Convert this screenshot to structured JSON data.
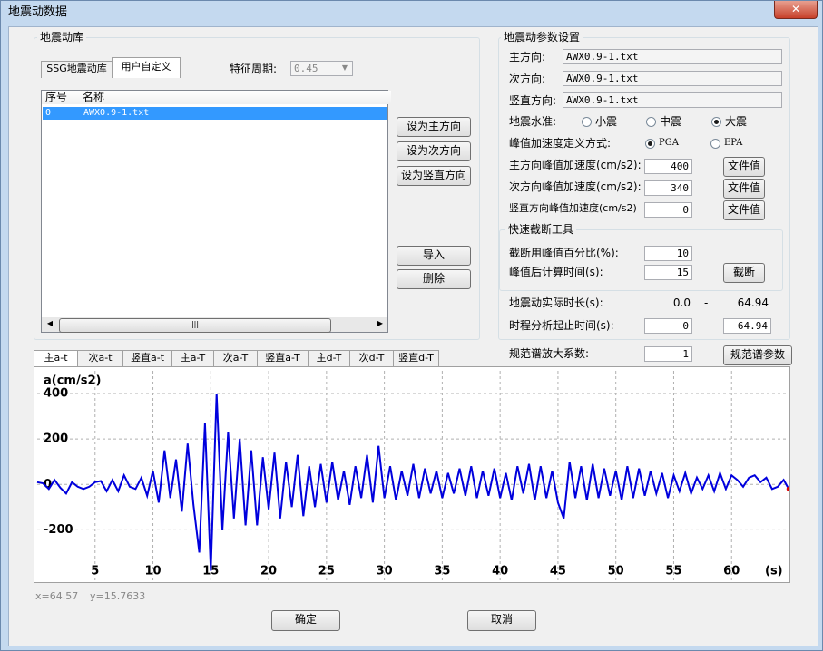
{
  "window": {
    "title": "地震动数据"
  },
  "library": {
    "title": "地震动库",
    "tabs": [
      "SSG地震动库",
      "用户自定义"
    ],
    "period_label": "特征周期:",
    "period": "0.45",
    "columns": [
      "序号",
      "名称"
    ],
    "rows": [
      [
        "0",
        "AWXO.9-1.txt"
      ]
    ],
    "buttons": [
      "设为主方向",
      "设为次方向",
      "设为竖直方向",
      "导入",
      "删除"
    ]
  },
  "params": {
    "title": "地震动参数设置",
    "files": [
      {
        "label": "主方向:",
        "value": "AWX0.9-1.txt"
      },
      {
        "label": "次方向:",
        "value": "AWX0.9-1.txt"
      },
      {
        "label": "竖直方向:",
        "value": "AWX0.9-1.txt"
      }
    ],
    "level": {
      "label": "地震水准:",
      "options": [
        "小震",
        "中震",
        "大震"
      ],
      "selected": "大震"
    },
    "peak_def": {
      "label": "峰值加速度定义方式:",
      "options": [
        "PGA",
        "EPA"
      ],
      "selected": "PGA"
    },
    "peaks": [
      {
        "label": "主方向峰值加速度(cm/s2):",
        "value": "400",
        "button": "文件值"
      },
      {
        "label": "次方向峰值加速度(cm/s2):",
        "value": "340",
        "button": "文件值"
      },
      {
        "label": "竖直方向峰值加速度(cm/s2)",
        "value": "0",
        "button": "文件值"
      }
    ],
    "truncate": {
      "title": "快速截断工具",
      "rows": [
        {
          "label": "截断用峰值百分比(%):",
          "value": "10"
        },
        {
          "label": "峰值后计算时间(s):",
          "value": "15"
        }
      ],
      "button": "截断"
    },
    "duration": {
      "label": "地震动实际时长(s):",
      "start": "0.0",
      "sep": "-",
      "end": "64.94"
    },
    "range": {
      "label": "时程分析起止时间(s):",
      "start": "0",
      "sep": "-",
      "end": "64.94"
    },
    "scale": {
      "label": "规范谱放大系数:",
      "value": "1",
      "button": "规范谱参数"
    }
  },
  "chart_tabs": [
    "主a-t",
    "次a-t",
    "竖直a-t",
    "主a-T",
    "次a-T",
    "竖直a-T",
    "主d-T",
    "次d-T",
    "竖直d-T"
  ],
  "status": [
    "x=64.57",
    "y=15.7633"
  ],
  "footer": [
    "确定",
    "取消"
  ],
  "chart_data": {
    "type": "line",
    "ylabel": "a(cm/s2)",
    "xlabel": "(s)",
    "color": "#0000dd",
    "grid": true,
    "xlim": [
      0,
      65
    ],
    "ylim": [
      -430,
      500
    ],
    "xticks": [
      5,
      10,
      15,
      20,
      25,
      30,
      35,
      40,
      45,
      50,
      55,
      60
    ],
    "yticks": [
      -200,
      0,
      200,
      400
    ],
    "x": [
      0,
      0.5,
      1,
      1.5,
      2,
      2.5,
      3,
      3.5,
      4,
      4.5,
      5,
      5.5,
      6,
      6.5,
      7,
      7.5,
      8,
      8.5,
      9,
      9.5,
      10,
      10.5,
      11,
      11.5,
      12,
      12.5,
      13,
      13.5,
      14,
      14.5,
      15,
      15.5,
      16,
      16.5,
      17,
      17.5,
      18,
      18.5,
      19,
      19.5,
      20,
      20.5,
      21,
      21.5,
      22,
      22.5,
      23,
      23.5,
      24,
      24.5,
      25,
      25.5,
      26,
      26.5,
      27,
      27.5,
      28,
      28.5,
      29,
      29.5,
      30,
      30.5,
      31,
      31.5,
      32,
      32.5,
      33,
      33.5,
      34,
      34.5,
      35,
      35.5,
      36,
      36.5,
      37,
      37.5,
      38,
      38.5,
      39,
      39.5,
      40,
      40.5,
      41,
      41.5,
      42,
      42.5,
      43,
      43.5,
      44,
      44.5,
      45,
      45.5,
      46,
      46.5,
      47,
      47.5,
      48,
      48.5,
      49,
      49.5,
      50,
      50.5,
      51,
      51.5,
      52,
      52.5,
      53,
      53.5,
      54,
      54.5,
      55,
      55.5,
      56,
      56.5,
      57,
      57.5,
      58,
      58.5,
      59,
      59.5,
      60,
      60.5,
      61,
      61.5,
      62,
      62.5,
      63,
      63.5,
      64,
      64.5,
      64.94
    ],
    "values": [
      10,
      5,
      -20,
      20,
      -15,
      -40,
      10,
      -10,
      -20,
      -10,
      10,
      15,
      -30,
      20,
      -30,
      40,
      -10,
      -20,
      30,
      -50,
      60,
      -80,
      150,
      -60,
      110,
      -120,
      180,
      -90,
      -300,
      270,
      -380,
      400,
      -200,
      230,
      -150,
      200,
      -180,
      150,
      -180,
      120,
      -110,
      140,
      -150,
      100,
      -100,
      130,
      -140,
      80,
      -100,
      90,
      -80,
      100,
      -70,
      60,
      -90,
      80,
      -60,
      130,
      -80,
      170,
      -60,
      80,
      -70,
      60,
      -50,
      90,
      -60,
      70,
      -40,
      60,
      -60,
      50,
      -40,
      70,
      -50,
      80,
      -60,
      60,
      -50,
      70,
      -60,
      50,
      -70,
      80,
      -40,
      90,
      -70,
      80,
      -60,
      60,
      -80,
      -150,
      100,
      -60,
      80,
      -70,
      90,
      -60,
      70,
      -50,
      60,
      -70,
      80,
      -60,
      70,
      -50,
      60,
      -40,
      50,
      -60,
      40,
      -30,
      50,
      -40,
      30,
      -20,
      40,
      -30,
      50,
      -20,
      40,
      20,
      -10,
      30,
      40,
      10,
      30,
      -20,
      -10,
      20,
      -20
    ]
  }
}
